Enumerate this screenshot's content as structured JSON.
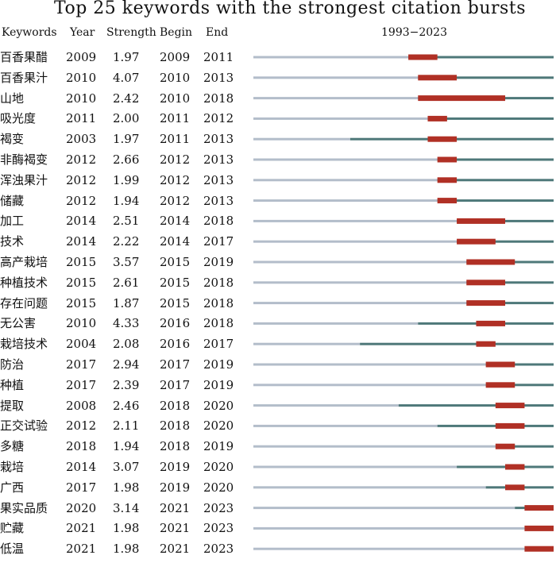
{
  "chart_data": {
    "type": "table",
    "title": "Top 25 keywords with the strongest citation bursts",
    "columns": [
      "Keywords",
      "Year",
      "Strength",
      "Begin",
      "End"
    ],
    "range_label": "1993−2023",
    "year_range": [
      1993,
      2023
    ],
    "colors": {
      "baseline": "#b3bdca",
      "active": "#4e7879",
      "burst": "#b03025"
    },
    "rows": [
      {
        "keyword": "百香果醋",
        "year": "2009",
        "strength": "1.97",
        "begin": "2009",
        "end": "2011"
      },
      {
        "keyword": "百香果汁",
        "year": "2010",
        "strength": "4.07",
        "begin": "2010",
        "end": "2013"
      },
      {
        "keyword": "山地",
        "year": "2010",
        "strength": "2.42",
        "begin": "2010",
        "end": "2018"
      },
      {
        "keyword": "吸光度",
        "year": "2011",
        "strength": "2.00",
        "begin": "2011",
        "end": "2012"
      },
      {
        "keyword": "褐变",
        "year": "2003",
        "strength": "1.97",
        "begin": "2011",
        "end": "2013"
      },
      {
        "keyword": "非酶褐变",
        "year": "2012",
        "strength": "2.66",
        "begin": "2012",
        "end": "2013"
      },
      {
        "keyword": "浑浊果汁",
        "year": "2012",
        "strength": "1.99",
        "begin": "2012",
        "end": "2013"
      },
      {
        "keyword": "储藏",
        "year": "2012",
        "strength": "1.94",
        "begin": "2012",
        "end": "2013"
      },
      {
        "keyword": "加工",
        "year": "2014",
        "strength": "2.51",
        "begin": "2014",
        "end": "2018"
      },
      {
        "keyword": "技术",
        "year": "2014",
        "strength": "2.22",
        "begin": "2014",
        "end": "2017"
      },
      {
        "keyword": "高产栽培",
        "year": "2015",
        "strength": "3.57",
        "begin": "2015",
        "end": "2019"
      },
      {
        "keyword": "种植技术",
        "year": "2015",
        "strength": "2.61",
        "begin": "2015",
        "end": "2018"
      },
      {
        "keyword": "存在问题",
        "year": "2015",
        "strength": "1.87",
        "begin": "2015",
        "end": "2018"
      },
      {
        "keyword": "无公害",
        "year": "2010",
        "strength": "4.33",
        "begin": "2016",
        "end": "2018"
      },
      {
        "keyword": "栽培技术",
        "year": "2004",
        "strength": "2.08",
        "begin": "2016",
        "end": "2017"
      },
      {
        "keyword": "防治",
        "year": "2017",
        "strength": "2.94",
        "begin": "2017",
        "end": "2019"
      },
      {
        "keyword": "种植",
        "year": "2017",
        "strength": "2.39",
        "begin": "2017",
        "end": "2019"
      },
      {
        "keyword": "提取",
        "year": "2008",
        "strength": "2.46",
        "begin": "2018",
        "end": "2020"
      },
      {
        "keyword": "正交试验",
        "year": "2012",
        "strength": "2.11",
        "begin": "2018",
        "end": "2020"
      },
      {
        "keyword": "多糖",
        "year": "2018",
        "strength": "1.94",
        "begin": "2018",
        "end": "2019"
      },
      {
        "keyword": "栽培",
        "year": "2014",
        "strength": "3.07",
        "begin": "2019",
        "end": "2020"
      },
      {
        "keyword": "广西",
        "year": "2017",
        "strength": "1.98",
        "begin": "2019",
        "end": "2020"
      },
      {
        "keyword": "果实品质",
        "year": "2020",
        "strength": "3.14",
        "begin": "2021",
        "end": "2023"
      },
      {
        "keyword": "贮藏",
        "year": "2021",
        "strength": "1.98",
        "begin": "2021",
        "end": "2023"
      },
      {
        "keyword": "低温",
        "year": "2021",
        "strength": "1.98",
        "begin": "2021",
        "end": "2023"
      }
    ]
  }
}
